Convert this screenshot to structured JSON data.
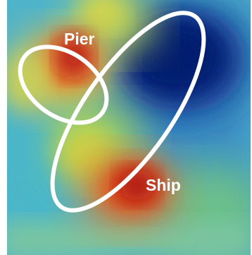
{
  "image": {
    "kind": "attention heatmap overlay",
    "colormap": [
      "#08306b",
      "#2c7bb6",
      "#4fb3c9",
      "#8fd18a",
      "#e6d94a",
      "#f08a24",
      "#b30000"
    ],
    "outline_color": "#ffffff"
  },
  "annotations": [
    {
      "label": "Pier"
    },
    {
      "label": "Ship"
    }
  ]
}
